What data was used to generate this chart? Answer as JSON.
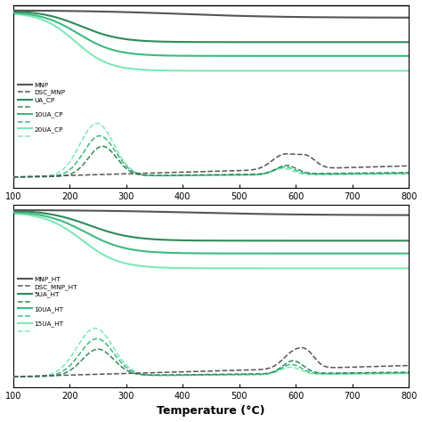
{
  "xlabel": "Temperature (°C)",
  "xmin": 100,
  "xmax": 800,
  "colors": {
    "black": "#555555",
    "dgreen": "#2e8b57",
    "mgreen": "#3dba80",
    "lgreen": "#7de8b8"
  },
  "background": "#ffffff",
  "figsize": [
    4.74,
    4.74
  ],
  "dpi": 100,
  "top_labels": [
    "MNP",
    "DSC_MNP",
    "UA_CP",
    "",
    "10UA_CP",
    "",
    "20UA_CP",
    ""
  ],
  "bot_labels": [
    "MNP_HT",
    "DSC_MNP_HT",
    "5UA_HT",
    "",
    "10UA_HT",
    "",
    "15UA_HT",
    ""
  ]
}
